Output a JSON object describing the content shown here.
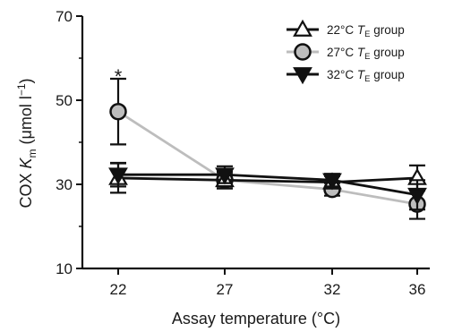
{
  "chart_data": {
    "type": "line",
    "x": [
      22,
      27,
      32,
      36
    ],
    "xlabel": "Assay temperature (°C)",
    "ylabel": {
      "prefix": "COX ",
      "k": "K",
      "k_sub": "m",
      "unit": " (μmol l",
      "unit_sup": "−1",
      "close": ")"
    },
    "ylim": [
      10,
      70
    ],
    "yticks": [
      10,
      30,
      50,
      70
    ],
    "xtick_labels": [
      "22",
      "27",
      "32",
      "36"
    ],
    "grid": false,
    "legend_position": "top-right",
    "series": [
      {
        "name": "22°C T_E group",
        "label": {
          "pre": "22°C ",
          "t": "T",
          "sub": "E",
          "post": " group"
        },
        "marker": "triangle-up",
        "fill": "#ffffff",
        "color": "#111111",
        "values": [
          31.5,
          31.0,
          30.5,
          31.5
        ],
        "err": [
          3.5,
          2.0,
          1.5,
          3.0
        ]
      },
      {
        "name": "27°C T_E group",
        "label": {
          "pre": "27°C ",
          "t": "T",
          "sub": "E",
          "post": " group"
        },
        "marker": "circle",
        "fill": "#bdbdbd",
        "color": "#bdbdbd",
        "values": [
          47.3,
          31.0,
          28.8,
          25.3
        ],
        "err": [
          7.8,
          1.5,
          1.5,
          3.5
        ]
      },
      {
        "name": "32°C T_E group",
        "label": {
          "pre": "32°C ",
          "t": "T",
          "sub": "E",
          "post": " group"
        },
        "marker": "triangle-down",
        "fill": "#111111",
        "color": "#111111",
        "values": [
          32.3,
          32.3,
          31.0,
          27.5
        ],
        "err": [
          2.8,
          2.0,
          1.5,
          3.5
        ]
      }
    ],
    "annotations": [
      {
        "text": "*",
        "x": 22,
        "y": 57
      }
    ]
  }
}
